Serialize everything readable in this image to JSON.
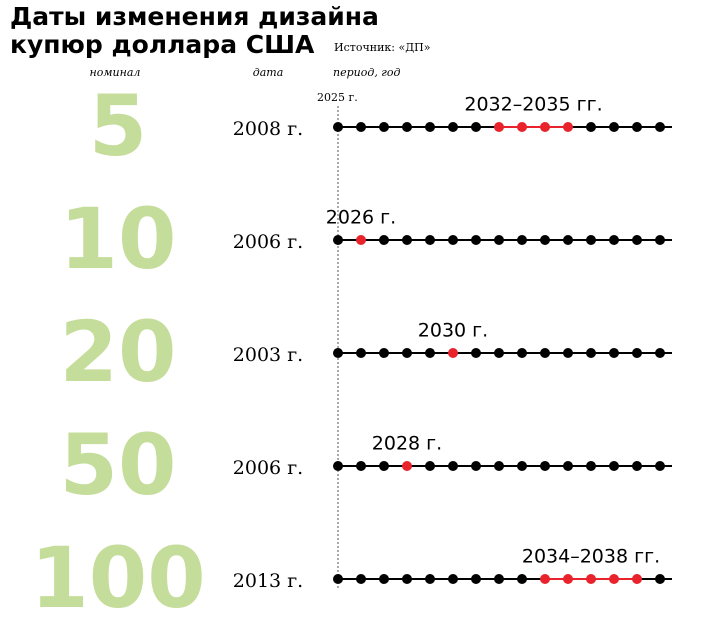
{
  "chart_data": {
    "type": "timeline",
    "title": [
      "Даты изменения дизайна",
      "купюр доллара США"
    ],
    "source": "Источник: «ДП»",
    "column_headers": [
      "номинал",
      "дата",
      "период, год"
    ],
    "start_label": "2025 г.",
    "xlim": [
      2025,
      2039
    ],
    "colors": {
      "dot": "#000000",
      "highlight": "#e8232b",
      "nominal": "#c5dd9a"
    },
    "rows": [
      {
        "nominal": "5",
        "date": "2008 г.",
        "label": "2032–2035 гг.",
        "start": 2032,
        "end": 2035
      },
      {
        "nominal": "10",
        "date": "2006 г.",
        "label": "2026 г.",
        "start": 2026,
        "end": 2026
      },
      {
        "nominal": "20",
        "date": "2003 г.",
        "label": "2030 г.",
        "start": 2030,
        "end": 2030
      },
      {
        "nominal": "50",
        "date": "2006 г.",
        "label": "2028 г.",
        "start": 2028,
        "end": 2028
      },
      {
        "nominal": "100",
        "date": "2013 г.",
        "label": "2034–2038 гг.",
        "start": 2034,
        "end": 2038
      }
    ]
  }
}
